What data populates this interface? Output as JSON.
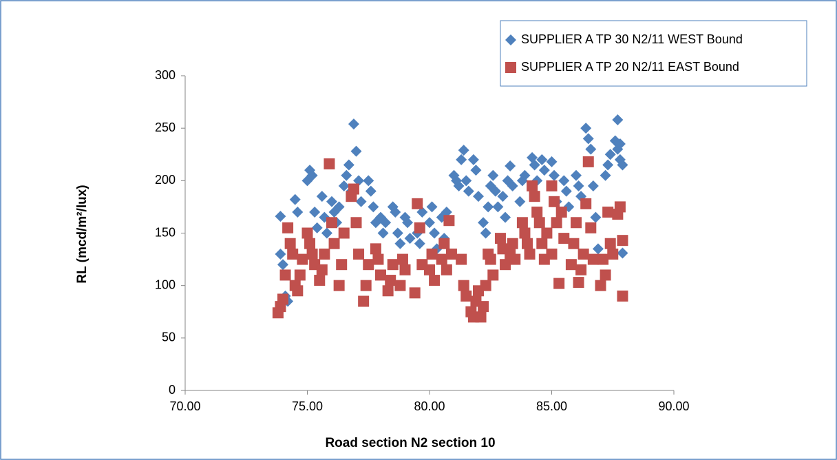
{
  "chart_data": {
    "type": "scatter",
    "xlabel": "Road section N2 section 10",
    "ylabel": "RL (mcd/m²/lux)",
    "xlim": [
      70,
      90
    ],
    "xticks": [
      {
        "value": 70,
        "label": "70.00"
      },
      {
        "value": 75,
        "label": "75.00"
      },
      {
        "value": 80,
        "label": "80.00"
      },
      {
        "value": 85,
        "label": "85.00"
      },
      {
        "value": 90,
        "label": "90.00"
      }
    ],
    "ylim": [
      0,
      300
    ],
    "yticks": [
      0,
      50,
      100,
      150,
      200,
      250,
      300
    ],
    "grid": false,
    "legend": "upper right",
    "series": [
      {
        "name": "SUPPLIER A TP 30 N2/11  WEST Bound",
        "color": "#4f81bd",
        "marker": "diamond",
        "x": [
          73.9,
          73.9,
          74.0,
          74.1,
          74.2,
          74.5,
          74.6,
          75.0,
          75.1,
          75.2,
          75.3,
          75.4,
          75.6,
          75.7,
          75.8,
          76.0,
          76.1,
          76.2,
          76.3,
          76.5,
          76.6,
          76.7,
          76.8,
          76.9,
          77.0,
          77.1,
          77.2,
          77.5,
          77.6,
          77.7,
          77.8,
          78.0,
          78.1,
          78.2,
          78.5,
          78.6,
          78.7,
          78.8,
          79.0,
          79.1,
          79.2,
          79.5,
          79.6,
          79.7,
          80.0,
          80.1,
          80.2,
          80.3,
          80.5,
          80.6,
          80.7,
          81.0,
          81.1,
          81.2,
          81.3,
          81.4,
          81.5,
          81.6,
          81.8,
          81.9,
          82.0,
          82.2,
          82.3,
          82.4,
          82.5,
          82.6,
          82.7,
          82.8,
          83.0,
          83.1,
          83.2,
          83.3,
          83.4,
          83.7,
          83.8,
          83.9,
          84.2,
          84.3,
          84.4,
          84.6,
          84.7,
          85.0,
          85.1,
          85.2,
          85.5,
          85.6,
          85.7,
          86.0,
          86.1,
          86.2,
          86.4,
          86.5,
          86.6,
          86.7,
          86.8,
          86.9,
          87.2,
          87.3,
          87.4,
          87.6,
          87.7,
          87.8,
          87.7,
          87.8,
          87.9,
          87.9
        ],
        "values": [
          130,
          166,
          120,
          90,
          85,
          182,
          170,
          200,
          210,
          205,
          170,
          155,
          185,
          165,
          150,
          180,
          170,
          160,
          175,
          195,
          205,
          215,
          190,
          254,
          228,
          200,
          180,
          200,
          190,
          175,
          160,
          165,
          150,
          160,
          175,
          170,
          150,
          140,
          165,
          160,
          145,
          150,
          140,
          170,
          160,
          175,
          150,
          135,
          165,
          145,
          170,
          205,
          200,
          195,
          220,
          229,
          200,
          190,
          220,
          210,
          185,
          160,
          150,
          175,
          195,
          205,
          190,
          175,
          185,
          165,
          200,
          214,
          195,
          180,
          200,
          205,
          222,
          215,
          200,
          220,
          210,
          218,
          205,
          180,
          200,
          190,
          175,
          205,
          195,
          185,
          250,
          240,
          230,
          195,
          165,
          135,
          205,
          215,
          225,
          238,
          230,
          220,
          258,
          235,
          215,
          131
        ]
      },
      {
        "name": "SUPPLIER A TP 20 N2/11 EAST Bound",
        "color": "#c0504d",
        "marker": "square",
        "x": [
          73.8,
          73.9,
          74.0,
          74.1,
          74.2,
          74.3,
          74.4,
          74.5,
          74.6,
          74.7,
          74.8,
          75.0,
          75.1,
          75.2,
          75.3,
          75.5,
          75.6,
          75.7,
          75.9,
          76.0,
          76.1,
          76.3,
          76.4,
          76.5,
          76.8,
          76.9,
          77.0,
          77.1,
          77.3,
          77.4,
          77.5,
          77.8,
          77.9,
          78.0,
          78.3,
          78.4,
          78.5,
          78.8,
          78.9,
          79.0,
          79.5,
          79.6,
          79.4,
          79.7,
          80.0,
          80.1,
          80.2,
          80.5,
          80.6,
          80.7,
          80.8,
          80.9,
          81.3,
          81.4,
          81.5,
          81.7,
          81.8,
          81.9,
          82.0,
          82.1,
          82.2,
          82.3,
          82.4,
          82.5,
          82.6,
          82.9,
          83.0,
          83.1,
          83.3,
          83.4,
          83.5,
          83.8,
          83.9,
          84.0,
          84.1,
          84.2,
          84.3,
          84.4,
          84.5,
          84.6,
          84.7,
          84.8,
          85.0,
          85.1,
          85.2,
          85.0,
          85.3,
          85.4,
          85.5,
          85.8,
          85.9,
          86.0,
          86.1,
          86.2,
          86.3,
          86.5,
          86.4,
          86.6,
          86.7,
          87.0,
          87.1,
          87.2,
          87.4,
          87.5,
          87.3,
          87.8,
          87.7,
          87.9,
          87.9
        ],
        "values": [
          74,
          80,
          87,
          110,
          155,
          140,
          130,
          100,
          95,
          110,
          125,
          150,
          140,
          130,
          120,
          105,
          115,
          130,
          216,
          160,
          140,
          100,
          120,
          150,
          185,
          192,
          160,
          130,
          85,
          100,
          120,
          135,
          125,
          110,
          95,
          105,
          120,
          100,
          125,
          115,
          178,
          155,
          93,
          120,
          115,
          130,
          105,
          125,
          140,
          115,
          162,
          130,
          125,
          100,
          90,
          75,
          70,
          85,
          95,
          70,
          80,
          100,
          130,
          125,
          110,
          145,
          135,
          120,
          130,
          140,
          125,
          160,
          150,
          140,
          130,
          195,
          185,
          170,
          160,
          140,
          125,
          150,
          195,
          180,
          160,
          130,
          102,
          170,
          145,
          120,
          140,
          160,
          103,
          115,
          130,
          218,
          178,
          155,
          125,
          100,
          125,
          110,
          140,
          130,
          170,
          175,
          168,
          143,
          90
        ]
      }
    ]
  }
}
